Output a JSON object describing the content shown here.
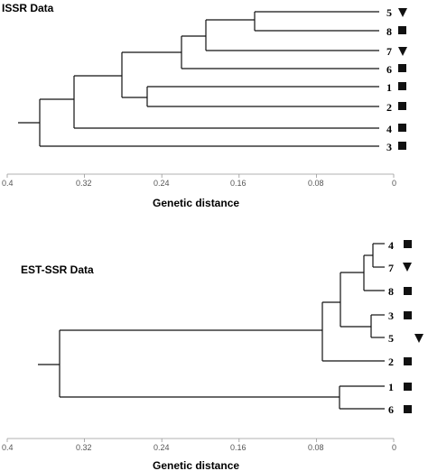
{
  "panels": [
    {
      "id": "issr",
      "title": "ISSR Data",
      "axis_label": "Genetic distance",
      "axis_ticks": [
        "0.4",
        "0.32",
        "0.24",
        "0.16",
        "0.08",
        "0"
      ],
      "leaves": [
        {
          "label": "5",
          "marker": "triangle"
        },
        {
          "label": "8",
          "marker": "square"
        },
        {
          "label": "7",
          "marker": "triangle"
        },
        {
          "label": "6",
          "marker": "square"
        },
        {
          "label": "1",
          "marker": "square"
        },
        {
          "label": "2",
          "marker": "square"
        },
        {
          "label": "4",
          "marker": "square"
        },
        {
          "label": "3",
          "marker": "square"
        }
      ]
    },
    {
      "id": "est-ssr",
      "title": "EST-SSR Data",
      "axis_label": "Genetic distance",
      "axis_ticks": [
        "0.4",
        "0.32",
        "0.24",
        "0.16",
        "0.08",
        "0"
      ],
      "leaves": [
        {
          "label": "4",
          "marker": "square"
        },
        {
          "label": "7",
          "marker": "triangle"
        },
        {
          "label": "8",
          "marker": "square"
        },
        {
          "label": "3",
          "marker": "square"
        },
        {
          "label": "5",
          "marker": "triangle"
        },
        {
          "label": "2",
          "marker": "square"
        },
        {
          "label": "1",
          "marker": "square"
        },
        {
          "label": "6",
          "marker": "square"
        }
      ]
    }
  ],
  "marker_color": "#111111",
  "line_color": "#111111"
}
